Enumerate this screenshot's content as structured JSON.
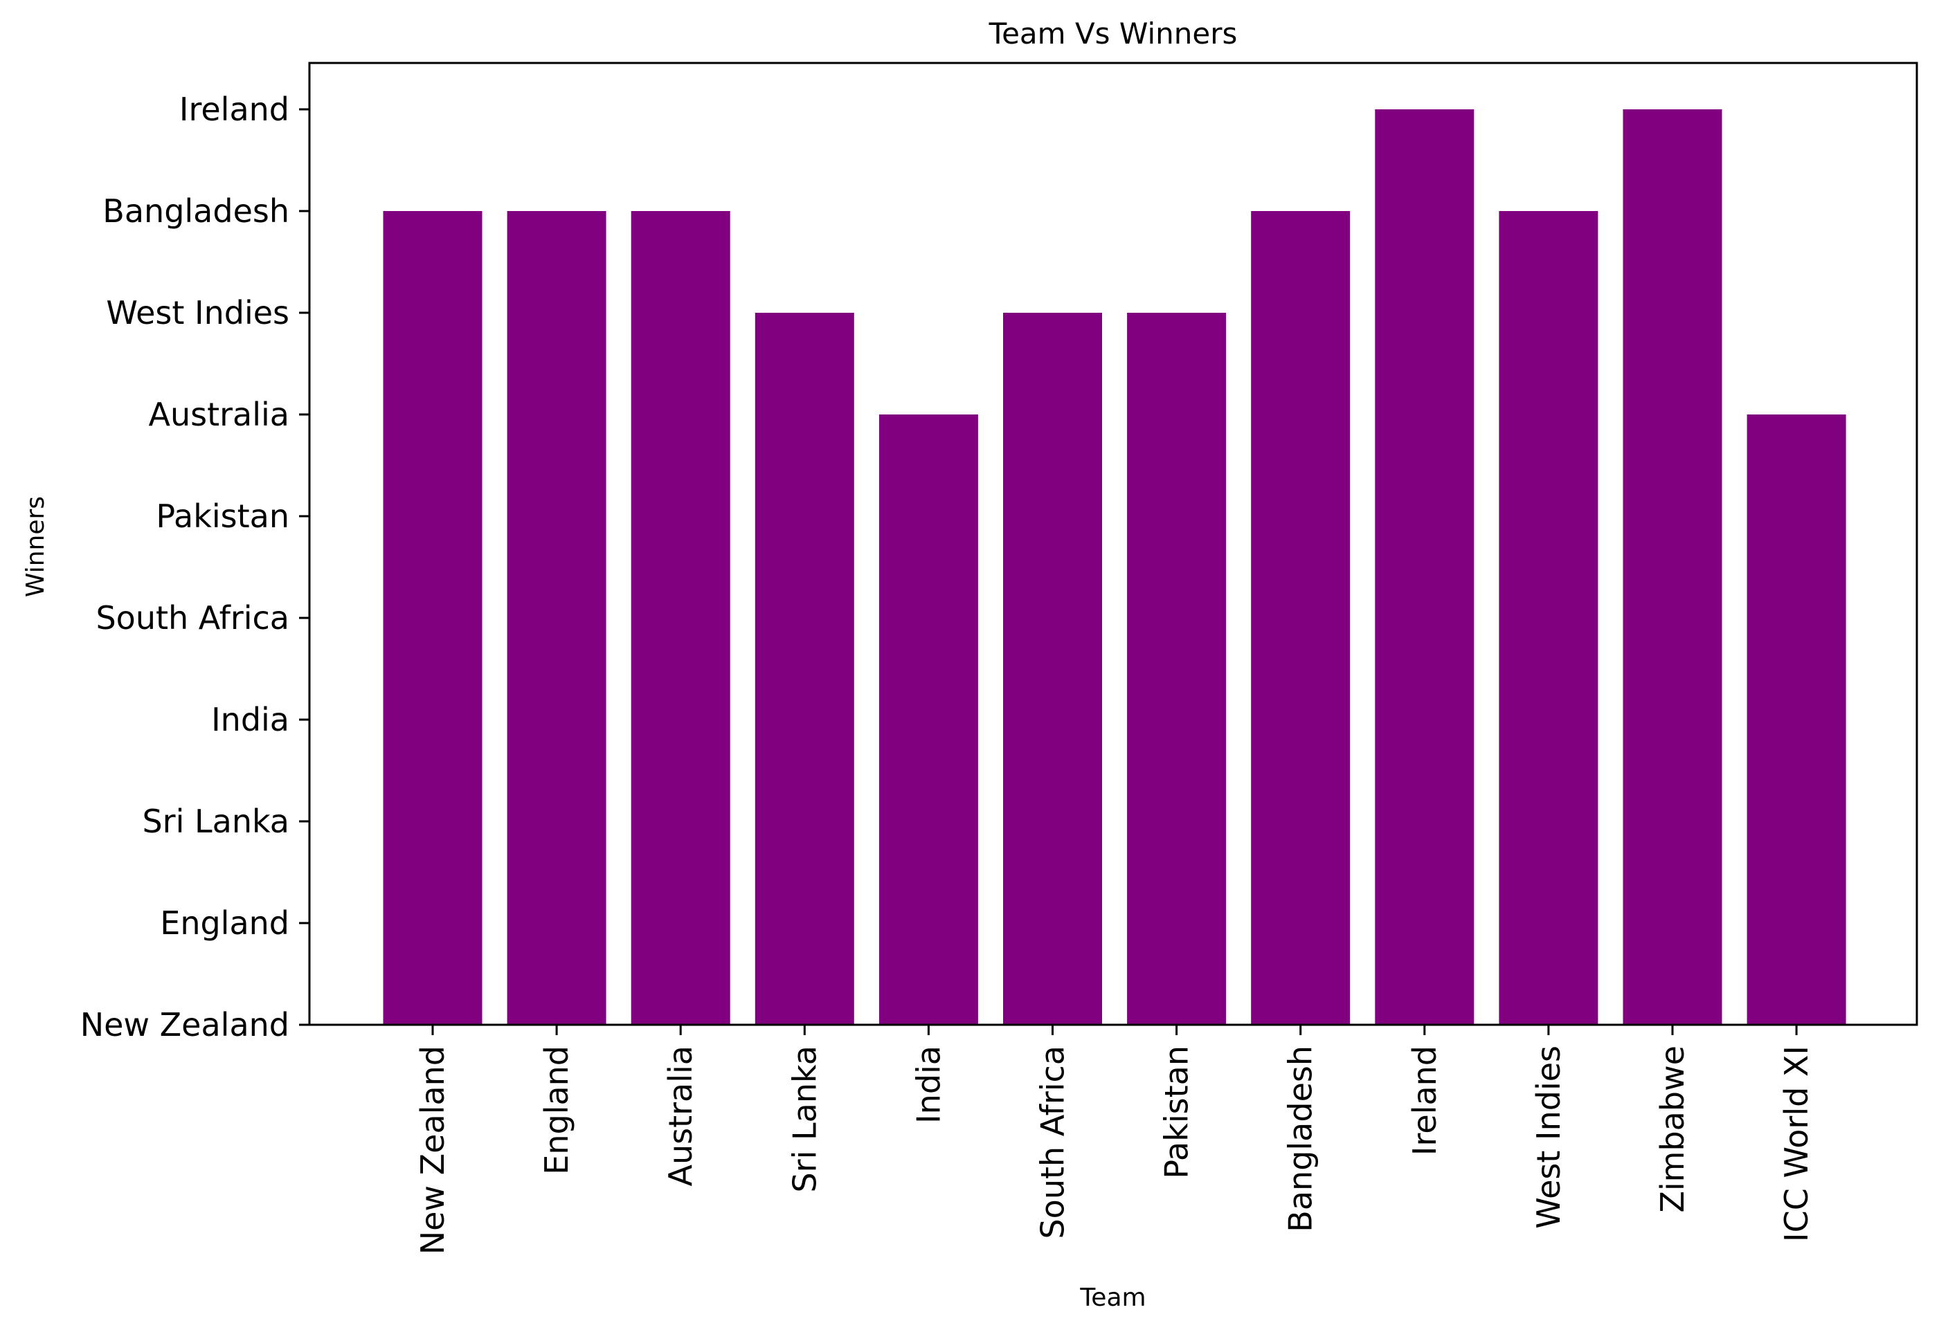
{
  "chart_data": {
    "type": "bar",
    "title": "Team Vs Winners",
    "xlabel": "Team",
    "ylabel": "Winners",
    "categories": [
      "New Zealand",
      "England",
      "Australia",
      "Sri Lanka",
      "India",
      "South Africa",
      "Pakistan",
      "Bangladesh",
      "Ireland",
      "West Indies",
      "Zimbabwe",
      "ICC World XI"
    ],
    "y_categories": [
      "New Zealand",
      "England",
      "Sri Lanka",
      "India",
      "South Africa",
      "Pakistan",
      "Australia",
      "West Indies",
      "Bangladesh",
      "Ireland"
    ],
    "values": [
      "Bangladesh",
      "Bangladesh",
      "Bangladesh",
      "West Indies",
      "Australia",
      "West Indies",
      "West Indies",
      "Bangladesh",
      "Ireland",
      "Bangladesh",
      "Ireland",
      "Australia"
    ],
    "bar_color": "#800080",
    "grid": false,
    "legend": "none"
  }
}
